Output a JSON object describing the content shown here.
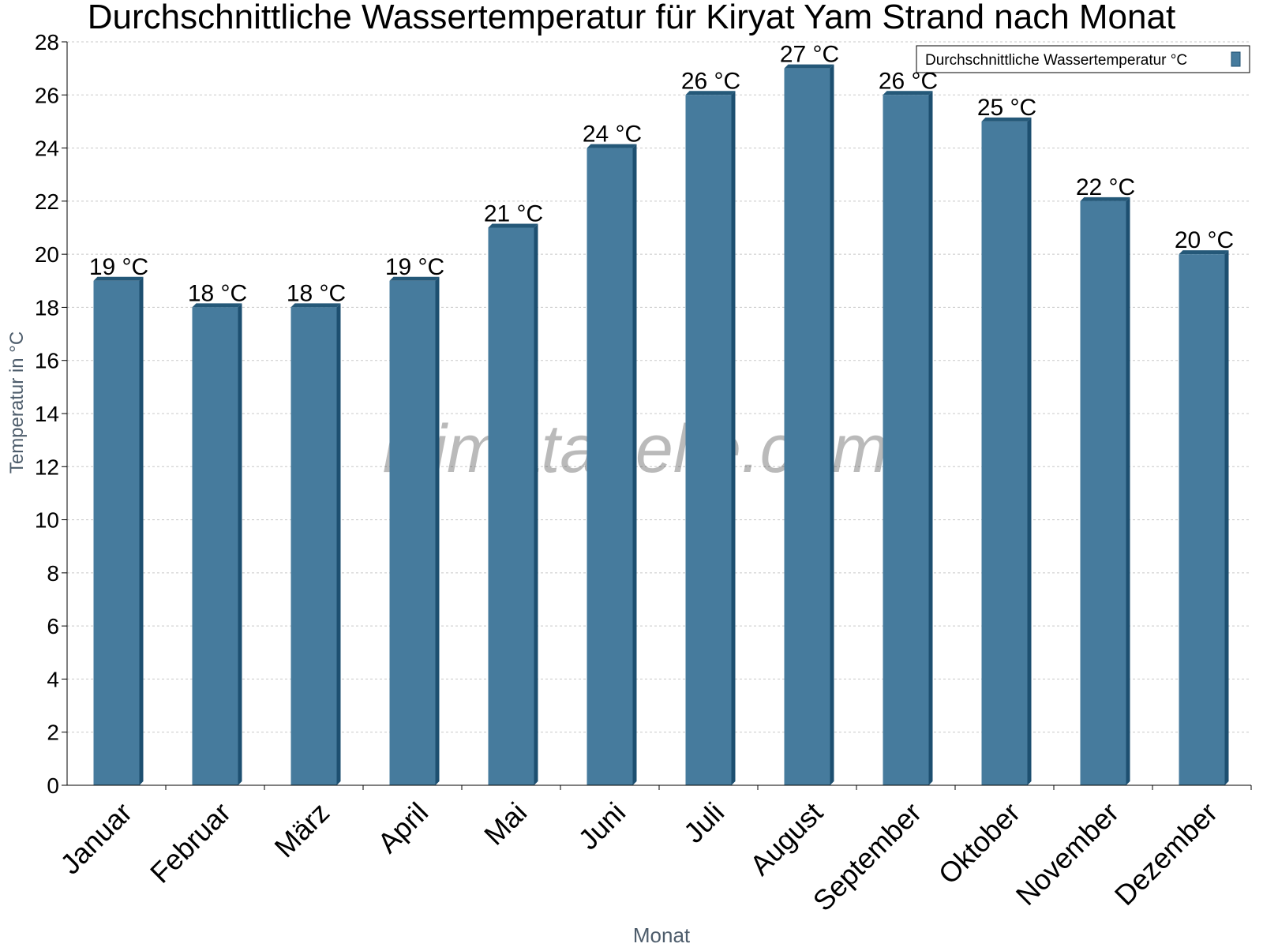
{
  "chart_data": {
    "type": "bar",
    "title": "Durchschnittliche Wassertemperatur für Kiryat Yam Strand nach Monat",
    "xlabel": "Monat",
    "ylabel": "Temperatur in °C",
    "categories": [
      "Januar",
      "Februar",
      "März",
      "April",
      "Mai",
      "Juni",
      "Juli",
      "August",
      "September",
      "Oktober",
      "November",
      "Dezember"
    ],
    "series": [
      {
        "name": "Durchschnittliche Wassertemperatur °C",
        "values": [
          19,
          18,
          18,
          19,
          21,
          24,
          26,
          27,
          26,
          25,
          22,
          20
        ],
        "labels": [
          "19 °C",
          "18 °C",
          "18 °C",
          "19 °C",
          "21 °C",
          "24 °C",
          "26 °C",
          "27 °C",
          "26 °C",
          "25 °C",
          "22 °C",
          "20 °C"
        ]
      }
    ],
    "ylim": [
      0,
      28
    ],
    "yticks": [
      0,
      2,
      4,
      6,
      8,
      10,
      12,
      14,
      16,
      18,
      20,
      22,
      24,
      26,
      28
    ],
    "ytick_labels": [
      "0",
      "2",
      "4",
      "6",
      "8",
      "10",
      "12",
      "14",
      "16",
      "18",
      "20",
      "22",
      "24",
      "26",
      "28"
    ],
    "grid": true,
    "legend_position": "top-right",
    "watermark": "klimatabelle.com",
    "colors": {
      "bar": "#467b9d",
      "bar_side": "#1d4f70",
      "bar_top": "#245878",
      "grid": "#c8c8c8",
      "axis_title": "#4d5c6b",
      "watermark": "#000000"
    }
  }
}
